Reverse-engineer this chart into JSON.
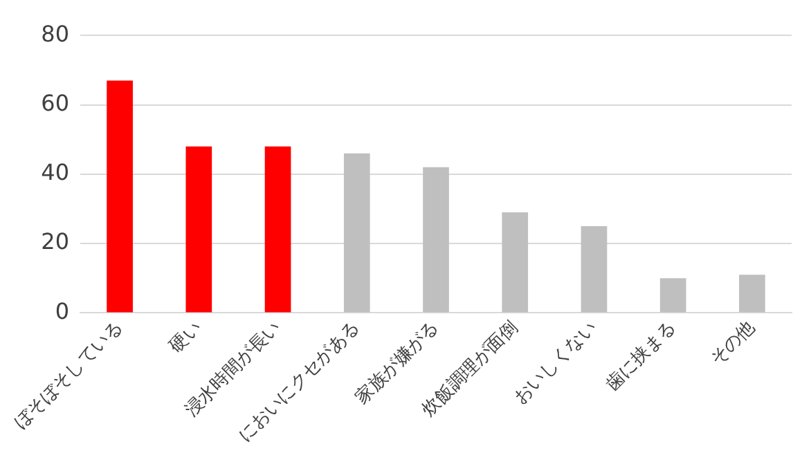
{
  "chart_data": {
    "type": "bar",
    "categories": [
      "ぼそぼそしている",
      "硬い",
      "浸水時間が長い",
      "においにクセがある",
      "家族が嫌がる",
      "炊飯調理が面倒",
      "おいしくない",
      "歯に挟まる",
      "その他"
    ],
    "values": [
      67,
      48,
      48,
      46,
      42,
      29,
      25,
      10,
      11
    ],
    "colors": [
      "#ff0000",
      "#ff0000",
      "#ff0000",
      "#bfbfbf",
      "#bfbfbf",
      "#bfbfbf",
      "#bfbfbf",
      "#bfbfbf",
      "#bfbfbf"
    ],
    "ylim": [
      0,
      80
    ],
    "yticks": [
      0,
      20,
      40,
      60,
      80
    ],
    "grid": "y",
    "legend": false
  }
}
